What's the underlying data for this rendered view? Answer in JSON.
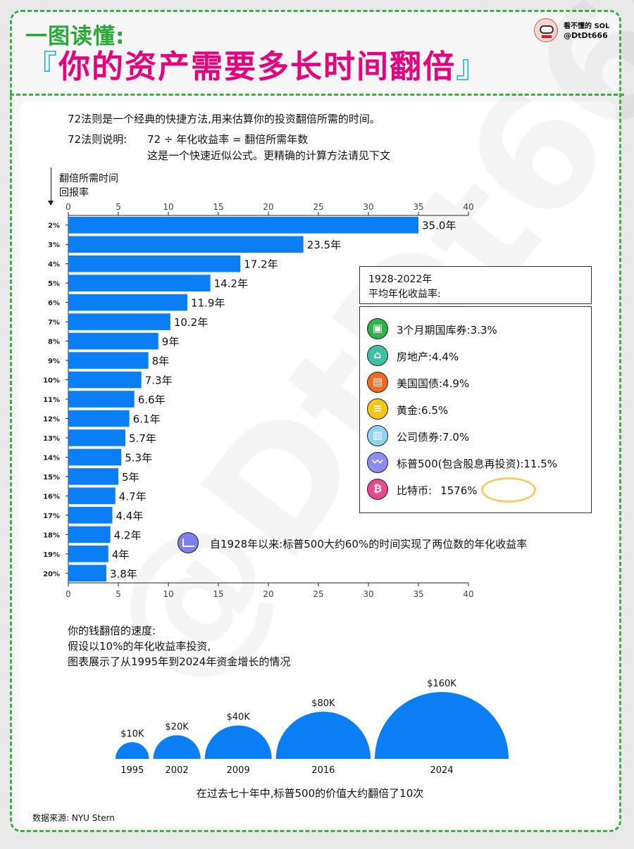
{
  "header": {
    "kicker": "一图读懂:",
    "title_open": "『",
    "title": "你的资产需要多长时间翻倍",
    "title_close": "』",
    "brand_name": "看不懂的 SOL",
    "brand_handle": "@DtDt666",
    "watermark": "@DtDt666"
  },
  "intro": {
    "line1": "72法则是一个经典的快捷方法,用来估算你的投资翻倍所需的时间。",
    "line2_label": "72法则说明:",
    "line2_formula": "72 ÷ 年化收益率 = 翻倍所需年数",
    "line3": "这是一个快速近似公式。更精确的计算方法请见下文"
  },
  "axis_labels": {
    "x_title": "翻倍所需时间",
    "y_title": "回报率"
  },
  "chart_data": [
    {
      "type": "bar",
      "orientation": "horizontal",
      "categories": [
        "2%",
        "3%",
        "4%",
        "5%",
        "6%",
        "7%",
        "8%",
        "9%",
        "10%",
        "11%",
        "12%",
        "13%",
        "14%",
        "15%",
        "16%",
        "17%",
        "18%",
        "19%",
        "20%"
      ],
      "values": [
        35.0,
        23.5,
        17.2,
        14.2,
        11.9,
        10.2,
        9,
        8,
        7.3,
        6.6,
        6.1,
        5.7,
        5.3,
        5,
        4.7,
        4.4,
        4.2,
        4,
        3.8
      ],
      "data_labels": [
        "35.0年",
        "23.5年",
        "17.2年",
        "14.2年",
        "11.9年",
        "10.2年",
        "9年",
        "8年",
        "7.3年",
        "6.6年",
        "6.1年",
        "5.7年",
        "5.3年",
        "5年",
        "4.7年",
        "4.4年",
        "4.2年",
        "4年",
        "3.8年"
      ],
      "xlim": [
        0,
        40
      ],
      "xticks": [
        0,
        5,
        10,
        15,
        20,
        25,
        30,
        35,
        40
      ],
      "xlabel": "翻倍所需时间",
      "ylabel": "回报率",
      "color": "#0a7ff5",
      "xaxis_top_and_bottom": true,
      "grid": false
    },
    {
      "type": "semicircle-bubbles",
      "categories": [
        "1995",
        "2002",
        "2009",
        "2016",
        "2024"
      ],
      "values": [
        10,
        20,
        40,
        80,
        160
      ],
      "value_unit": "K USD",
      "data_labels": [
        "$10K",
        "$20K",
        "$40K",
        "$80K",
        "$160K"
      ],
      "color": "#0a7ff5"
    }
  ],
  "legend": {
    "head_line1": "1928-2022年",
    "head_line2": "平均年化收益率:",
    "items": [
      {
        "label": "3个月期国库券:3.3%",
        "icon": "treasury-bill-icon",
        "color": "#2fb24a",
        "glyph": "▣"
      },
      {
        "label": "房地产:4.4%",
        "icon": "house-icon",
        "color": "#3cc1a3",
        "glyph": "⌂"
      },
      {
        "label": "美国国债:4.9%",
        "icon": "bond-certificate-icon",
        "color": "#f06a1f",
        "glyph": "▤"
      },
      {
        "label": "黄金:6.5%",
        "icon": "gold-bars-icon",
        "color": "#f5c518",
        "glyph": "≡"
      },
      {
        "label": "公司债券:7.0%",
        "icon": "building-icon",
        "color": "#8fd3f4",
        "glyph": "▥"
      },
      {
        "label": "标普500(包含股息再投资):11.5%",
        "icon": "stock-chart-icon",
        "color": "#8c8cf2",
        "glyph": "〰"
      },
      {
        "label_prefix": "比特币:",
        "label_value": "1576%",
        "icon": "bitcoin-icon",
        "color": "#e8488d",
        "glyph": "₿"
      }
    ]
  },
  "note": {
    "text": "自1928年以来:标普500大约60%的时间实现了两位数的年化收益率",
    "icon": "growth-chart-icon"
  },
  "growth_section": {
    "line1": "你的钱翻倍的速度:",
    "line2": "假设以10%的年化收益率投资,",
    "line3": "图表展示了从1995年到2024年资金增长的情况",
    "footer": "在过去七十年中,标普500的价值大约翻倍了10次"
  },
  "source": "数据来源: NYU Stern"
}
